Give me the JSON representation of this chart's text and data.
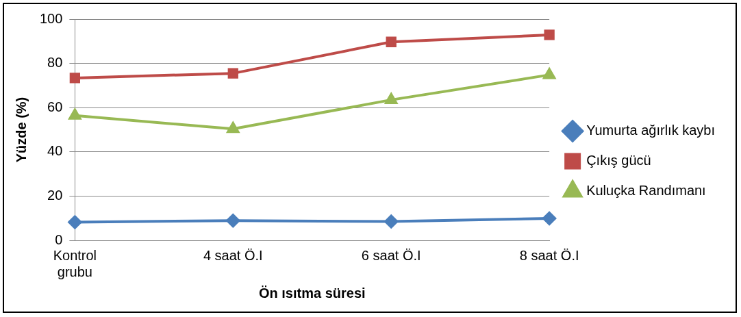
{
  "chart_data": {
    "type": "line",
    "xlabel": "Ön ısıtma süresi",
    "ylabel": "Yüzde (%)",
    "categories": [
      "Kontrol grubu",
      "4 saat Ö.I",
      "6 saat Ö.I",
      "8 saat Ö.I"
    ],
    "series": [
      {
        "name": "Yumurta ağırlık kaybı",
        "color": "#4a7ebb",
        "marker": "diamond",
        "values": [
          8.2,
          8.9,
          8.5,
          9.9
        ]
      },
      {
        "name": "Çıkış gücü",
        "color": "#be4b48",
        "marker": "square",
        "values": [
          73.4,
          75.5,
          89.7,
          92.9
        ]
      },
      {
        "name": "Kuluçka Randımanı",
        "color": "#98b954",
        "marker": "triangle",
        "values": [
          56.4,
          50.4,
          63.5,
          74.8
        ]
      }
    ],
    "ylim": [
      0,
      100
    ],
    "yticks": [
      0,
      20,
      40,
      60,
      80,
      100
    ],
    "grid": "y",
    "legend": "right"
  }
}
